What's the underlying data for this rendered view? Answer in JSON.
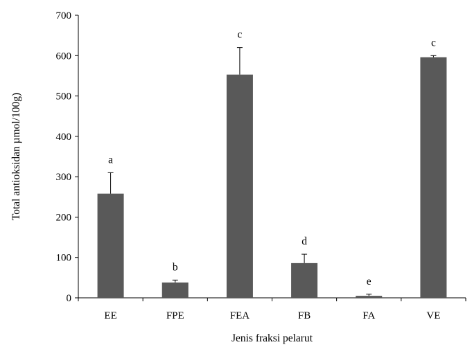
{
  "chart_data": {
    "type": "bar",
    "categories": [
      "EE",
      "FPE",
      "FEA",
      "FB",
      "FA",
      "VE"
    ],
    "values": [
      258,
      38,
      553,
      86,
      5,
      596
    ],
    "errors": [
      52,
      6,
      67,
      22,
      4,
      4
    ],
    "significance_labels": [
      "a",
      "b",
      "c",
      "d",
      "e",
      "c"
    ],
    "xlabel": "Jenis fraksi pelarut",
    "ylabel": "Total antioksidan µmol/100g)",
    "ylim": [
      0,
      700
    ],
    "yticks": [
      0,
      100,
      200,
      300,
      400,
      500,
      600,
      700
    ],
    "bar_color": "#595959",
    "grid": false,
    "legend": "none"
  }
}
